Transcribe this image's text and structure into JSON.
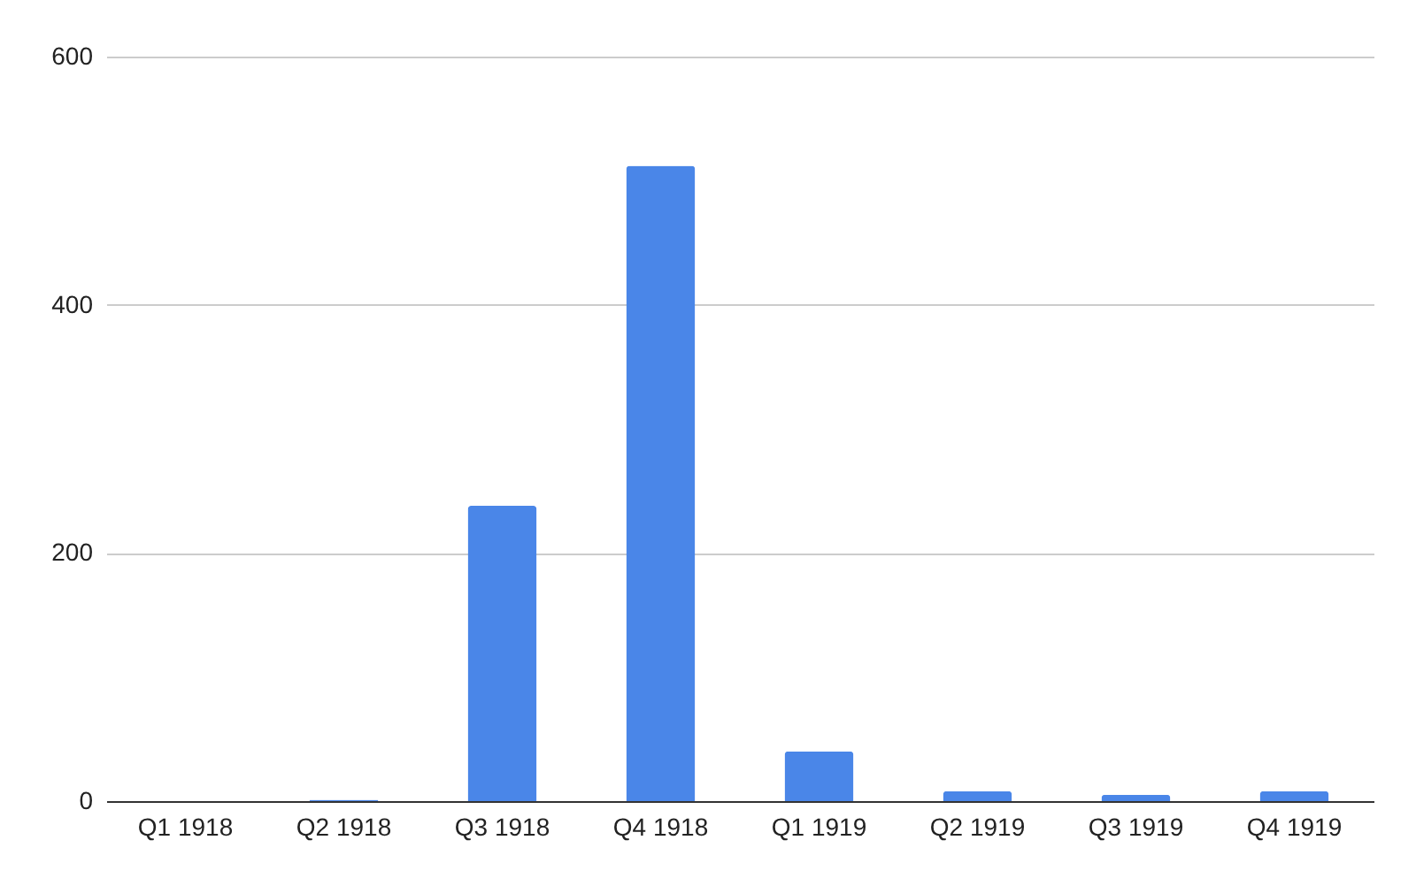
{
  "chart_data": {
    "type": "bar",
    "categories": [
      "Q1 1918",
      "Q2 1918",
      "Q3 1918",
      "Q4 1918",
      "Q1 1919",
      "Q2 1919",
      "Q3 1919",
      "Q4 1919"
    ],
    "values": [
      0,
      1,
      238,
      512,
      40,
      8,
      5,
      8
    ],
    "color": "#4a86e8",
    "ylim": [
      0,
      600
    ],
    "yticks": [
      0,
      200,
      400,
      600
    ],
    "grid": "y"
  }
}
